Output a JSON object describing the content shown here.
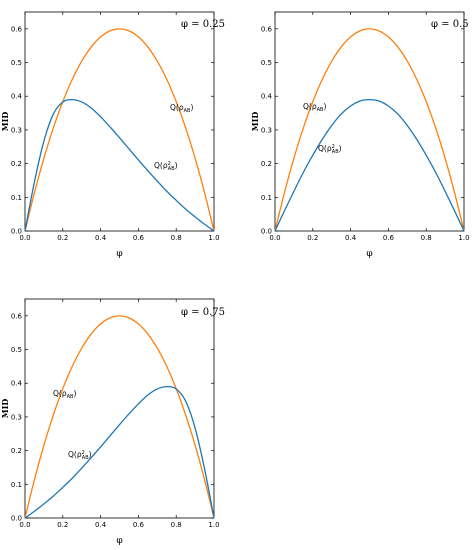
{
  "chart_data": [
    {
      "type": "line",
      "title": "",
      "annotation": "φ = 0.25",
      "xlabel": "φ",
      "ylabel": "MID",
      "xlim": [
        0,
        1
      ],
      "ylim": [
        0,
        0.65
      ],
      "xticks": [
        "0.0",
        "0.2",
        "0.4",
        "0.6",
        "0.8",
        "1.0"
      ],
      "yticks": [
        "0.0",
        "0.1",
        "0.2",
        "0.3",
        "0.4",
        "0.5",
        "0.6"
      ],
      "series": [
        {
          "name": "Q(ρAB)",
          "color": "#ff7f0e",
          "x": [
            0,
            0.05,
            0.1,
            0.15,
            0.2,
            0.25,
            0.3,
            0.35,
            0.4,
            0.45,
            0.5,
            0.55,
            0.6,
            0.65,
            0.7,
            0.75,
            0.8,
            0.85,
            0.9,
            0.95,
            1.0
          ],
          "y": [
            0,
            0.114,
            0.216,
            0.306,
            0.384,
            0.45,
            0.504,
            0.546,
            0.576,
            0.594,
            0.6,
            0.594,
            0.576,
            0.546,
            0.504,
            0.45,
            0.384,
            0.306,
            0.216,
            0.114,
            0
          ]
        },
        {
          "name": "Q(ρ²AB)",
          "color": "#1f77b4",
          "x": [
            0,
            0.05,
            0.1,
            0.15,
            0.2,
            0.25,
            0.3,
            0.35,
            0.4,
            0.45,
            0.5,
            0.55,
            0.6,
            0.65,
            0.7,
            0.75,
            0.8,
            0.85,
            0.9,
            0.95,
            1.0
          ],
          "y": [
            0,
            0.146,
            0.267,
            0.347,
            0.383,
            0.39,
            0.383,
            0.365,
            0.339,
            0.309,
            0.277,
            0.244,
            0.211,
            0.179,
            0.148,
            0.118,
            0.091,
            0.065,
            0.042,
            0.02,
            0
          ]
        }
      ],
      "annotations": [
        {
          "label": "Q(ρAB)",
          "series": 0
        },
        {
          "label": "Q(ρ²AB)",
          "series": 1
        }
      ]
    },
    {
      "type": "line",
      "title": "",
      "annotation": "φ = 0.5",
      "xlabel": "φ",
      "ylabel": "MID",
      "xlim": [
        0,
        1
      ],
      "ylim": [
        0,
        0.65
      ],
      "xticks": [
        "0.0",
        "0.2",
        "0.4",
        "0.6",
        "0.8",
        "1.0"
      ],
      "yticks": [
        "0.0",
        "0.1",
        "0.2",
        "0.3",
        "0.4",
        "0.5",
        "0.6"
      ],
      "series": [
        {
          "name": "Q(ρAB)",
          "color": "#ff7f0e",
          "x": [
            0,
            0.05,
            0.1,
            0.15,
            0.2,
            0.25,
            0.3,
            0.35,
            0.4,
            0.45,
            0.5,
            0.55,
            0.6,
            0.65,
            0.7,
            0.75,
            0.8,
            0.85,
            0.9,
            0.95,
            1.0
          ],
          "y": [
            0,
            0.114,
            0.216,
            0.306,
            0.384,
            0.45,
            0.504,
            0.546,
            0.576,
            0.594,
            0.6,
            0.594,
            0.576,
            0.546,
            0.504,
            0.45,
            0.384,
            0.306,
            0.216,
            0.114,
            0
          ]
        },
        {
          "name": "Q(ρ²AB)",
          "color": "#1f77b4",
          "x": [
            0,
            0.05,
            0.1,
            0.15,
            0.2,
            0.25,
            0.3,
            0.35,
            0.4,
            0.45,
            0.5,
            0.55,
            0.6,
            0.65,
            0.7,
            0.75,
            0.8,
            0.85,
            0.9,
            0.95,
            1.0
          ],
          "y": [
            0,
            0.06,
            0.118,
            0.174,
            0.225,
            0.272,
            0.313,
            0.347,
            0.371,
            0.386,
            0.39,
            0.386,
            0.371,
            0.347,
            0.313,
            0.272,
            0.225,
            0.174,
            0.118,
            0.06,
            0
          ]
        }
      ],
      "annotations": [
        {
          "label": "Q(ρAB)",
          "series": 0
        },
        {
          "label": "Q(ρ²AB)",
          "series": 1
        }
      ]
    },
    {
      "type": "line",
      "title": "",
      "annotation": "φ = 0.75",
      "xlabel": "φ",
      "ylabel": "MID",
      "xlim": [
        0,
        1
      ],
      "ylim": [
        0,
        0.65
      ],
      "xticks": [
        "0.0",
        "0.2",
        "0.4",
        "0.6",
        "0.8",
        "1.0"
      ],
      "yticks": [
        "0.0",
        "0.1",
        "0.2",
        "0.3",
        "0.4",
        "0.5",
        "0.6"
      ],
      "series": [
        {
          "name": "Q(ρAB)",
          "color": "#ff7f0e",
          "x": [
            0,
            0.05,
            0.1,
            0.15,
            0.2,
            0.25,
            0.3,
            0.35,
            0.4,
            0.45,
            0.5,
            0.55,
            0.6,
            0.65,
            0.7,
            0.75,
            0.8,
            0.85,
            0.9,
            0.95,
            1.0
          ],
          "y": [
            0,
            0.114,
            0.216,
            0.306,
            0.384,
            0.45,
            0.504,
            0.546,
            0.576,
            0.594,
            0.6,
            0.594,
            0.576,
            0.546,
            0.504,
            0.45,
            0.384,
            0.306,
            0.216,
            0.114,
            0
          ]
        },
        {
          "name": "Q(ρ²AB)",
          "color": "#1f77b4",
          "x": [
            0,
            0.05,
            0.1,
            0.15,
            0.2,
            0.25,
            0.3,
            0.35,
            0.4,
            0.45,
            0.5,
            0.55,
            0.6,
            0.65,
            0.7,
            0.75,
            0.8,
            0.85,
            0.9,
            0.95,
            1.0
          ],
          "y": [
            0,
            0.02,
            0.042,
            0.065,
            0.091,
            0.118,
            0.148,
            0.179,
            0.211,
            0.244,
            0.277,
            0.309,
            0.339,
            0.365,
            0.383,
            0.39,
            0.383,
            0.347,
            0.267,
            0.146,
            0
          ]
        }
      ],
      "annotations": [
        {
          "label": "Q(ρAB)",
          "series": 0
        },
        {
          "label": "Q(ρ²AB)",
          "series": 1
        }
      ]
    }
  ]
}
